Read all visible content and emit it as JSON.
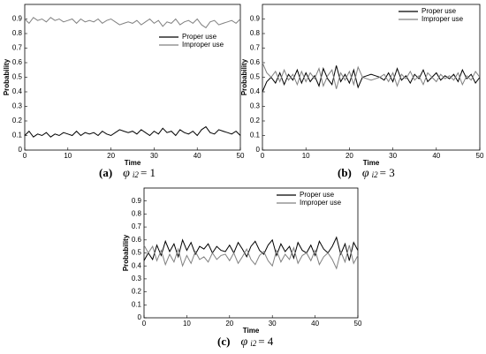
{
  "chart_data": [
    {
      "type": "line",
      "xlabel": "Time",
      "ylabel": "Probability",
      "caption": {
        "label": "(a)",
        "symbol": "φ",
        "subscript": "i2",
        "rhs": "= 1"
      },
      "x": [
        0,
        1,
        2,
        3,
        4,
        5,
        6,
        7,
        8,
        9,
        10,
        11,
        12,
        13,
        14,
        15,
        16,
        17,
        18,
        19,
        20,
        21,
        22,
        23,
        24,
        25,
        26,
        27,
        28,
        29,
        30,
        31,
        32,
        33,
        34,
        35,
        36,
        37,
        38,
        39,
        40,
        41,
        42,
        43,
        44,
        45,
        46,
        47,
        48,
        49,
        50
      ],
      "xlim": [
        0,
        50
      ],
      "xticks": [
        0,
        10,
        20,
        30,
        40,
        50
      ],
      "ylim": [
        0,
        1
      ],
      "yticks": [
        0,
        0.1,
        0.2,
        0.3,
        0.4,
        0.5,
        0.6,
        0.7,
        0.8,
        0.9
      ],
      "legend": "upper right",
      "series": [
        {
          "name": "Proper use",
          "color": "#000000",
          "values": [
            0.1,
            0.13,
            0.09,
            0.11,
            0.1,
            0.12,
            0.09,
            0.11,
            0.1,
            0.12,
            0.11,
            0.1,
            0.13,
            0.1,
            0.12,
            0.11,
            0.12,
            0.1,
            0.13,
            0.11,
            0.1,
            0.12,
            0.14,
            0.13,
            0.12,
            0.13,
            0.11,
            0.14,
            0.12,
            0.1,
            0.13,
            0.11,
            0.15,
            0.12,
            0.13,
            0.1,
            0.14,
            0.12,
            0.11,
            0.13,
            0.1,
            0.14,
            0.16,
            0.12,
            0.11,
            0.14,
            0.13,
            0.12,
            0.11,
            0.13,
            0.1
          ]
        },
        {
          "name": "Improper use",
          "color": "#808080",
          "values": [
            0.9,
            0.87,
            0.91,
            0.89,
            0.9,
            0.88,
            0.91,
            0.89,
            0.9,
            0.88,
            0.89,
            0.9,
            0.87,
            0.9,
            0.88,
            0.89,
            0.88,
            0.9,
            0.87,
            0.89,
            0.9,
            0.88,
            0.86,
            0.87,
            0.88,
            0.87,
            0.89,
            0.86,
            0.88,
            0.9,
            0.87,
            0.89,
            0.85,
            0.88,
            0.87,
            0.9,
            0.86,
            0.88,
            0.89,
            0.87,
            0.9,
            0.86,
            0.84,
            0.88,
            0.89,
            0.86,
            0.87,
            0.88,
            0.89,
            0.87,
            0.9
          ]
        }
      ]
    },
    {
      "type": "line",
      "xlabel": "Time",
      "ylabel": "Probability",
      "caption": {
        "label": "(b)",
        "symbol": "φ",
        "subscript": "i2",
        "rhs": "= 3"
      },
      "x": [
        0,
        1,
        2,
        3,
        4,
        5,
        6,
        7,
        8,
        9,
        10,
        11,
        12,
        13,
        14,
        15,
        16,
        17,
        18,
        19,
        20,
        21,
        22,
        23,
        24,
        25,
        26,
        27,
        28,
        29,
        30,
        31,
        32,
        33,
        34,
        35,
        36,
        37,
        38,
        39,
        40,
        41,
        42,
        43,
        44,
        45,
        46,
        47,
        48,
        49,
        50
      ],
      "xlim": [
        0,
        50
      ],
      "xticks": [
        0,
        10,
        20,
        30,
        40,
        50
      ],
      "ylim": [
        0,
        1
      ],
      "yticks": [
        0,
        0.1,
        0.2,
        0.3,
        0.4,
        0.5,
        0.6,
        0.7,
        0.8,
        0.9
      ],
      "legend": "upper right",
      "series": [
        {
          "name": "Proper use",
          "color": "#000000",
          "values": [
            0.4,
            0.47,
            0.5,
            0.46,
            0.53,
            0.45,
            0.52,
            0.48,
            0.55,
            0.46,
            0.53,
            0.47,
            0.51,
            0.44,
            0.56,
            0.49,
            0.45,
            0.58,
            0.47,
            0.52,
            0.46,
            0.55,
            0.43,
            0.5,
            0.51,
            0.52,
            0.51,
            0.5,
            0.48,
            0.53,
            0.47,
            0.56,
            0.48,
            0.51,
            0.46,
            0.52,
            0.49,
            0.55,
            0.47,
            0.5,
            0.53,
            0.48,
            0.51,
            0.49,
            0.52,
            0.47,
            0.55,
            0.49,
            0.52,
            0.46,
            0.5
          ]
        },
        {
          "name": "Improper use",
          "color": "#808080",
          "values": [
            0.6,
            0.53,
            0.5,
            0.54,
            0.47,
            0.55,
            0.48,
            0.52,
            0.45,
            0.54,
            0.47,
            0.53,
            0.49,
            0.56,
            0.44,
            0.51,
            0.55,
            0.42,
            0.53,
            0.48,
            0.54,
            0.45,
            0.57,
            0.5,
            0.49,
            0.48,
            0.49,
            0.5,
            0.52,
            0.47,
            0.53,
            0.44,
            0.52,
            0.49,
            0.54,
            0.48,
            0.51,
            0.45,
            0.53,
            0.5,
            0.47,
            0.52,
            0.49,
            0.51,
            0.48,
            0.53,
            0.45,
            0.51,
            0.48,
            0.54,
            0.5
          ]
        }
      ]
    },
    {
      "type": "line",
      "xlabel": "Time",
      "ylabel": "Probability",
      "caption": {
        "label": "(c)",
        "symbol": "φ",
        "subscript": "i2",
        "rhs": "= 4"
      },
      "x": [
        0,
        1,
        2,
        3,
        4,
        5,
        6,
        7,
        8,
        9,
        10,
        11,
        12,
        13,
        14,
        15,
        16,
        17,
        18,
        19,
        20,
        21,
        22,
        23,
        24,
        25,
        26,
        27,
        28,
        29,
        30,
        31,
        32,
        33,
        34,
        35,
        36,
        37,
        38,
        39,
        40,
        41,
        42,
        43,
        44,
        45,
        46,
        47,
        48,
        49,
        50
      ],
      "xlim": [
        0,
        50
      ],
      "xticks": [
        0,
        10,
        20,
        30,
        40,
        50
      ],
      "ylim": [
        0,
        1
      ],
      "yticks": [
        0,
        0.1,
        0.2,
        0.3,
        0.4,
        0.5,
        0.6,
        0.7,
        0.8,
        0.9
      ],
      "legend": "upper right",
      "series": [
        {
          "name": "Proper use",
          "color": "#000000",
          "values": [
            0.44,
            0.5,
            0.45,
            0.56,
            0.48,
            0.59,
            0.51,
            0.57,
            0.47,
            0.6,
            0.52,
            0.58,
            0.49,
            0.55,
            0.53,
            0.57,
            0.5,
            0.55,
            0.52,
            0.51,
            0.56,
            0.5,
            0.58,
            0.53,
            0.47,
            0.55,
            0.59,
            0.52,
            0.49,
            0.56,
            0.6,
            0.48,
            0.57,
            0.51,
            0.55,
            0.46,
            0.58,
            0.52,
            0.5,
            0.56,
            0.48,
            0.59,
            0.53,
            0.5,
            0.55,
            0.62,
            0.49,
            0.57,
            0.44,
            0.58,
            0.52
          ]
        },
        {
          "name": "Improper use",
          "color": "#808080",
          "values": [
            0.56,
            0.5,
            0.55,
            0.44,
            0.52,
            0.41,
            0.49,
            0.43,
            0.53,
            0.4,
            0.48,
            0.42,
            0.51,
            0.45,
            0.47,
            0.43,
            0.5,
            0.45,
            0.48,
            0.49,
            0.44,
            0.5,
            0.42,
            0.47,
            0.53,
            0.45,
            0.41,
            0.48,
            0.51,
            0.44,
            0.4,
            0.52,
            0.43,
            0.49,
            0.45,
            0.54,
            0.42,
            0.48,
            0.5,
            0.44,
            0.52,
            0.41,
            0.47,
            0.5,
            0.45,
            0.38,
            0.51,
            0.43,
            0.56,
            0.42,
            0.48
          ]
        }
      ]
    }
  ]
}
